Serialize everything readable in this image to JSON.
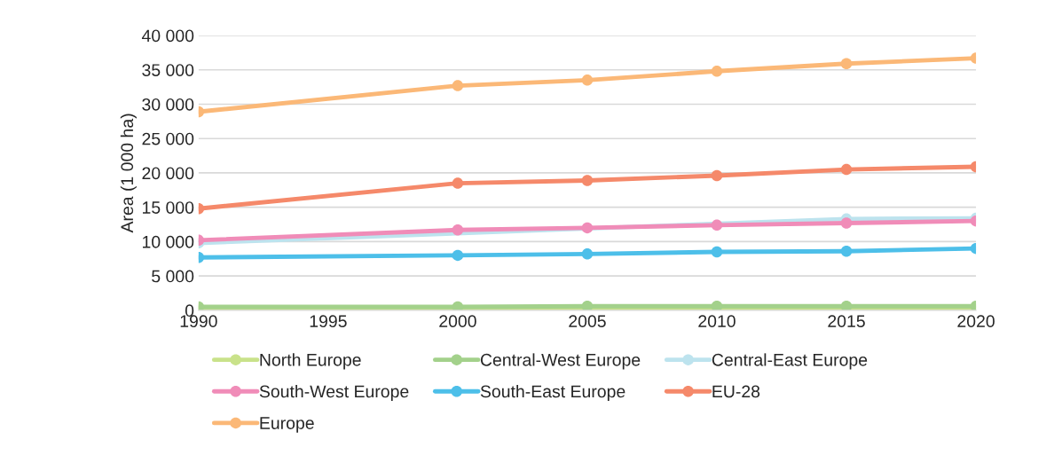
{
  "chart_data": {
    "type": "line",
    "ylabel": "Area (1 000 ha)",
    "x": [
      1990,
      2000,
      2005,
      2010,
      2015,
      2020
    ],
    "xlim": [
      1990,
      2020
    ],
    "xticks": [
      1990,
      1995,
      2000,
      2005,
      2010,
      2015,
      2020
    ],
    "ylim": [
      0,
      40000
    ],
    "yticks": [
      {
        "value": 0,
        "label": "0"
      },
      {
        "value": 5000,
        "label": "5 000"
      },
      {
        "value": 10000,
        "label": "10 000"
      },
      {
        "value": 15000,
        "label": "15 000"
      },
      {
        "value": 20000,
        "label": "20 000"
      },
      {
        "value": 25000,
        "label": "25 000"
      },
      {
        "value": 30000,
        "label": "30 000"
      },
      {
        "value": 35000,
        "label": "35 000"
      },
      {
        "value": 40000,
        "label": "40 000"
      }
    ],
    "grid": "y",
    "legend": "bottom",
    "marker": "circle",
    "line_style": "solid",
    "series": [
      {
        "name": "North Europe",
        "color": "#c9e28a",
        "values": [
          300,
          300,
          300,
          300,
          300,
          300
        ]
      },
      {
        "name": "Central-West Europe",
        "color": "#a3d18b",
        "values": [
          500,
          500,
          600,
          600,
          600,
          600
        ]
      },
      {
        "name": "Central-East Europe",
        "color": "#bde3ee",
        "values": [
          9800,
          null,
          null,
          null,
          13300,
          13400
        ]
      },
      {
        "name": "South-West Europe",
        "color": "#f08cb8",
        "values": [
          10200,
          11700,
          12000,
          12400,
          12700,
          13000
        ]
      },
      {
        "name": "South-East Europe",
        "color": "#4dbfe9",
        "values": [
          7700,
          8000,
          8200,
          8500,
          8600,
          9000
        ]
      },
      {
        "name": "EU-28",
        "color": "#f5896a",
        "values": [
          14800,
          18500,
          18900,
          19600,
          20500,
          20900
        ]
      },
      {
        "name": "Europe",
        "color": "#fbb877",
        "values": [
          28900,
          32700,
          33500,
          34800,
          35900,
          36700
        ]
      }
    ]
  }
}
